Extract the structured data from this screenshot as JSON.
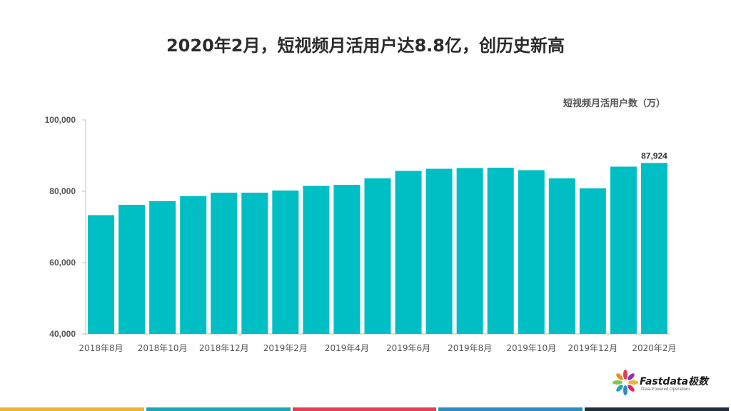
{
  "title": "2020年2月，短视频月活用户达8.8亿，创历史新高",
  "unit_label": "短视频月活用户数（万）",
  "logo": {
    "name": "Fastdata极数",
    "tagline": "Data-Powered Operations"
  },
  "colors": {
    "bar": "#00BFC4",
    "axis_text": "#555555",
    "stripes": [
      "#E8B534",
      "#1AA6B2",
      "#E0404F",
      "#2D8CC4",
      "#1F2D3D"
    ]
  },
  "chart_data": {
    "type": "bar",
    "title": "2020年2月，短视频月活用户达8.8亿，创历史新高",
    "ylabel": "短视频月活用户数（万）",
    "ylim": [
      40000,
      100000
    ],
    "yticks": [
      40000,
      60000,
      80000,
      100000
    ],
    "ytick_labels": [
      "40,000",
      "60,000",
      "80,000",
      "100,000"
    ],
    "categories": [
      "2018年8月",
      "2018年9月",
      "2018年10月",
      "2018年11月",
      "2018年12月",
      "2019年1月",
      "2019年2月",
      "2019年3月",
      "2019年4月",
      "2019年5月",
      "2019年6月",
      "2019年7月",
      "2019年8月",
      "2019年9月",
      "2019年10月",
      "2019年11月",
      "2019年12月",
      "2020年1月",
      "2020年2月"
    ],
    "xtick_labels": [
      "2018年8月",
      "",
      "2018年10月",
      "",
      "2018年12月",
      "",
      "2019年2月",
      "",
      "2019年4月",
      "",
      "2019年6月",
      "",
      "2019年8月",
      "",
      "2019年10月",
      "",
      "2019年12月",
      "",
      "2020年2月"
    ],
    "values": [
      73300,
      76200,
      77200,
      78600,
      79600,
      79600,
      80200,
      81500,
      81800,
      83600,
      85700,
      86300,
      86500,
      86600,
      85900,
      83600,
      80800,
      86900,
      87924
    ],
    "data_labels": [
      "",
      "",
      "",
      "",
      "",
      "",
      "",
      "",
      "",
      "",
      "",
      "",
      "",
      "",
      "",
      "",
      "",
      "",
      "87,924"
    ],
    "grid": false
  }
}
